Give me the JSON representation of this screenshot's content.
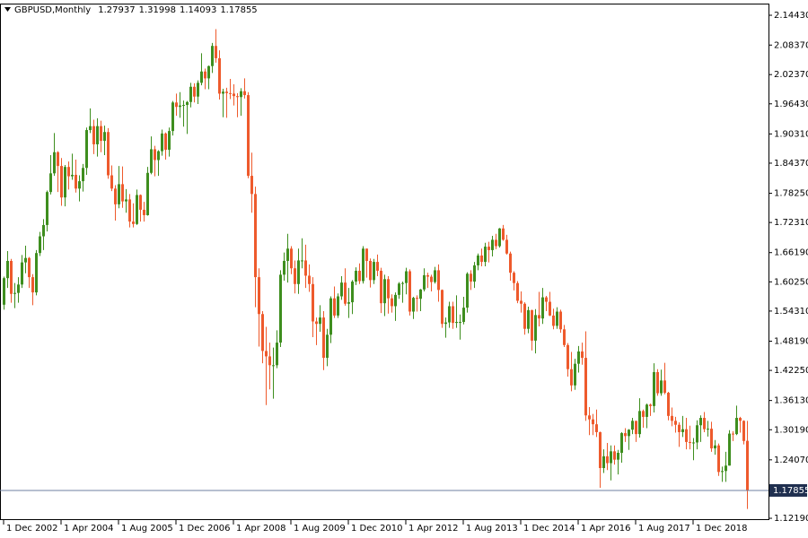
{
  "chart_data": {
    "type": "candlestick",
    "title": "GBPUSD,Monthly",
    "categories": [
      "1 Dec 2002",
      null,
      null,
      null,
      null,
      null,
      null,
      null,
      null,
      null,
      null,
      null,
      null,
      null,
      null,
      null,
      "1 Apr 2004",
      null,
      null,
      null,
      null,
      null,
      null,
      null,
      null,
      null,
      null,
      null,
      null,
      null,
      null,
      null,
      "1 Aug 2005",
      null,
      null,
      null,
      null,
      null,
      null,
      null,
      null,
      null,
      null,
      null,
      null,
      null,
      null,
      null,
      "1 Dec 2006",
      null,
      null,
      null,
      null,
      null,
      null,
      null,
      null,
      null,
      null,
      null,
      null,
      null,
      null,
      null,
      "1 Apr 2008",
      null,
      null,
      null,
      null,
      null,
      null,
      null,
      null,
      null,
      null,
      null,
      null,
      null,
      null,
      null,
      "1 Aug 2009",
      null,
      null,
      null,
      null,
      null,
      null,
      null,
      null,
      null,
      null,
      null,
      null,
      null,
      null,
      null,
      "1 Dec 2010",
      null,
      null,
      null,
      null,
      null,
      null,
      null,
      null,
      null,
      null,
      null,
      null,
      null,
      null,
      null,
      "1 Apr 2012",
      null,
      null,
      null,
      null,
      null,
      null,
      null,
      null,
      null,
      null,
      null,
      null,
      null,
      null,
      null,
      "1 Aug 2013",
      null,
      null,
      null,
      null,
      null,
      null,
      null,
      null,
      null,
      null,
      null,
      null,
      null,
      null,
      null,
      "1 Dec 2014",
      null,
      null,
      null,
      null,
      null,
      null,
      null,
      null,
      null,
      null,
      null,
      null,
      null,
      null,
      null,
      "1 Apr 2016",
      null,
      null,
      null,
      null,
      null,
      null,
      null,
      null,
      null,
      null,
      null,
      null,
      null,
      null,
      null,
      "1 Aug 2017",
      null,
      null,
      null,
      null,
      null,
      null,
      null,
      null,
      null,
      null,
      null,
      null,
      null,
      null,
      null,
      "1 Dec 2018",
      null,
      null,
      null,
      null,
      null,
      null,
      null,
      null,
      null,
      null,
      null,
      null,
      null,
      null,
      null
    ],
    "open": [
      1.556,
      1.61,
      1.645,
      1.578,
      1.58,
      1.597,
      1.642,
      1.651,
      1.612,
      1.581,
      1.661,
      1.695,
      1.718,
      1.785,
      1.823,
      1.866,
      1.838,
      1.774,
      1.836,
      1.817,
      1.82,
      1.792,
      1.807,
      1.834,
      1.911,
      1.919,
      1.882,
      1.919,
      1.889,
      1.907,
      1.819,
      1.792,
      1.76,
      1.801,
      1.766,
      1.77,
      1.725,
      1.72,
      1.779,
      1.749,
      1.738,
      1.824,
      1.872,
      1.85,
      1.868,
      1.904,
      1.871,
      1.909,
      1.967,
      1.958,
      1.961,
      1.962,
      1.968,
      1.999,
      1.979,
      2.007,
      2.03,
      2.016,
      2.041,
      2.082,
      2.057,
      1.985,
      1.989,
      1.986,
      1.985,
      1.98,
      1.978,
      1.99,
      1.982,
      1.818,
      1.781,
      1.612,
      1.537,
      1.462,
      1.451,
      1.433,
      1.433,
      1.479,
      1.617,
      1.645,
      1.67,
      1.63,
      1.598,
      1.646,
      1.646,
      1.615,
      1.598,
      1.522,
      1.517,
      1.53,
      1.448,
      1.495,
      1.569,
      1.534,
      1.573,
      1.601,
      1.558,
      1.561,
      1.603,
      1.625,
      1.604,
      1.67,
      1.645,
      1.606,
      1.643,
      1.625,
      1.559,
      1.608,
      1.569,
      1.553,
      1.576,
      1.599,
      1.6,
      1.624,
      1.542,
      1.57,
      1.568,
      1.587,
      1.616,
      1.613,
      1.602,
      1.626,
      1.586,
      1.517,
      1.52,
      1.553,
      1.519,
      1.521,
      1.521,
      1.55,
      1.619,
      1.603,
      1.636,
      1.656,
      1.643,
      1.674,
      1.667,
      1.688,
      1.675,
      1.711,
      1.688,
      1.66,
      1.621,
      1.6,
      1.564,
      1.558,
      1.507,
      1.545,
      1.483,
      1.535,
      1.528,
      1.571,
      1.562,
      1.534,
      1.513,
      1.542,
      1.506,
      1.474,
      1.425,
      1.392,
      1.436,
      1.461,
      1.448,
      1.331,
      1.323,
      1.313,
      1.297,
      1.224,
      1.248,
      1.234,
      1.258,
      1.241,
      1.255,
      1.295,
      1.289,
      1.302,
      1.32,
      1.293,
      1.34,
      1.328,
      1.353,
      1.35,
      1.419,
      1.376,
      1.402,
      1.377,
      1.33,
      1.32,
      1.312,
      1.297,
      1.303,
      1.277,
      1.275,
      1.276,
      1.311,
      1.326,
      1.303,
      1.304,
      1.264,
      1.27,
      1.216,
      1.218,
      1.229,
      1.294,
      1.293,
      1.326,
      1.32,
      1.27937
    ],
    "high": [
      1.613,
      1.665,
      1.649,
      1.6,
      1.612,
      1.657,
      1.676,
      1.653,
      1.618,
      1.667,
      1.704,
      1.73,
      1.788,
      1.86,
      1.905,
      1.868,
      1.854,
      1.84,
      1.847,
      1.863,
      1.851,
      1.819,
      1.842,
      1.916,
      1.955,
      1.932,
      1.935,
      1.93,
      1.92,
      1.915,
      1.839,
      1.799,
      1.838,
      1.837,
      1.791,
      1.781,
      1.762,
      1.79,
      1.78,
      1.765,
      1.836,
      1.898,
      1.879,
      1.87,
      1.912,
      1.906,
      1.916,
      1.97,
      1.985,
      1.988,
      1.971,
      1.97,
      2.007,
      2.006,
      2.012,
      2.067,
      2.036,
      2.042,
      2.088,
      2.116,
      2.073,
      1.995,
      1.997,
      2.015,
      2.004,
      1.986,
      1.996,
      2.016,
      1.988,
      1.865,
      1.796,
      1.63,
      1.543,
      1.511,
      1.479,
      1.469,
      1.504,
      1.626,
      1.662,
      1.7,
      1.675,
      1.646,
      1.67,
      1.691,
      1.678,
      1.638,
      1.612,
      1.53,
      1.555,
      1.543,
      1.507,
      1.573,
      1.593,
      1.579,
      1.614,
      1.63,
      1.59,
      1.606,
      1.632,
      1.64,
      1.675,
      1.67,
      1.65,
      1.649,
      1.658,
      1.631,
      1.617,
      1.614,
      1.577,
      1.581,
      1.602,
      1.603,
      1.631,
      1.628,
      1.572,
      1.575,
      1.588,
      1.63,
      1.621,
      1.617,
      1.633,
      1.638,
      1.587,
      1.53,
      1.562,
      1.562,
      1.575,
      1.536,
      1.572,
      1.622,
      1.626,
      1.643,
      1.66,
      1.67,
      1.682,
      1.684,
      1.696,
      1.7,
      1.712,
      1.718,
      1.698,
      1.664,
      1.624,
      1.604,
      1.583,
      1.561,
      1.552,
      1.546,
      1.547,
      1.582,
      1.59,
      1.574,
      1.582,
      1.548,
      1.551,
      1.546,
      1.515,
      1.478,
      1.46,
      1.446,
      1.472,
      1.479,
      1.502,
      1.348,
      1.334,
      1.343,
      1.298,
      1.262,
      1.275,
      1.27,
      1.27,
      1.261,
      1.297,
      1.305,
      1.303,
      1.326,
      1.32,
      1.366,
      1.343,
      1.355,
      1.355,
      1.437,
      1.425,
      1.424,
      1.438,
      1.379,
      1.347,
      1.328,
      1.317,
      1.33,
      1.326,
      1.31,
      1.285,
      1.321,
      1.331,
      1.338,
      1.32,
      1.318,
      1.281,
      1.274,
      1.227,
      1.257,
      1.301,
      1.299,
      1.351,
      1.328,
      1.321,
      1.31998
    ],
    "low": [
      1.546,
      1.59,
      1.56,
      1.549,
      1.56,
      1.59,
      1.62,
      1.59,
      1.555,
      1.575,
      1.655,
      1.667,
      1.705,
      1.78,
      1.818,
      1.785,
      1.757,
      1.756,
      1.79,
      1.81,
      1.784,
      1.766,
      1.786,
      1.82,
      1.905,
      1.862,
      1.857,
      1.866,
      1.86,
      1.812,
      1.787,
      1.727,
      1.752,
      1.753,
      1.743,
      1.713,
      1.713,
      1.718,
      1.725,
      1.725,
      1.737,
      1.821,
      1.817,
      1.818,
      1.859,
      1.851,
      1.857,
      1.9,
      1.94,
      1.936,
      1.918,
      1.903,
      1.957,
      1.967,
      1.964,
      2.002,
      1.994,
      1.994,
      2.027,
      2.048,
      1.973,
      1.937,
      1.936,
      1.974,
      1.961,
      1.937,
      1.94,
      1.975,
      1.813,
      1.743,
      1.551,
      1.471,
      1.437,
      1.352,
      1.384,
      1.365,
      1.427,
      1.47,
      1.605,
      1.601,
      1.618,
      1.579,
      1.578,
      1.63,
      1.59,
      1.582,
      1.49,
      1.474,
      1.501,
      1.423,
      1.431,
      1.478,
      1.529,
      1.529,
      1.566,
      1.554,
      1.529,
      1.537,
      1.596,
      1.598,
      1.599,
      1.611,
      1.591,
      1.598,
      1.614,
      1.539,
      1.533,
      1.538,
      1.54,
      1.523,
      1.568,
      1.56,
      1.577,
      1.534,
      1.527,
      1.542,
      1.543,
      1.583,
      1.59,
      1.583,
      1.599,
      1.562,
      1.509,
      1.489,
      1.509,
      1.507,
      1.509,
      1.485,
      1.516,
      1.54,
      1.586,
      1.59,
      1.626,
      1.634,
      1.634,
      1.642,
      1.654,
      1.669,
      1.672,
      1.686,
      1.658,
      1.605,
      1.585,
      1.559,
      1.54,
      1.495,
      1.498,
      1.463,
      1.457,
      1.512,
      1.517,
      1.543,
      1.533,
      1.506,
      1.507,
      1.499,
      1.47,
      1.41,
      1.38,
      1.383,
      1.418,
      1.434,
      1.32,
      1.291,
      1.291,
      1.287,
      1.184,
      1.214,
      1.22,
      1.199,
      1.231,
      1.211,
      1.235,
      1.277,
      1.261,
      1.293,
      1.277,
      1.286,
      1.306,
      1.305,
      1.33,
      1.337,
      1.371,
      1.371,
      1.374,
      1.321,
      1.309,
      1.296,
      1.267,
      1.287,
      1.262,
      1.262,
      1.24,
      1.262,
      1.277,
      1.297,
      1.288,
      1.257,
      1.251,
      1.208,
      1.196,
      1.196,
      1.229,
      1.279,
      1.291,
      1.296,
      1.272,
      1.14093
    ],
    "close": [
      1.61,
      1.645,
      1.578,
      1.58,
      1.597,
      1.642,
      1.651,
      1.612,
      1.581,
      1.661,
      1.695,
      1.718,
      1.785,
      1.823,
      1.866,
      1.838,
      1.774,
      1.836,
      1.817,
      1.82,
      1.792,
      1.807,
      1.834,
      1.911,
      1.919,
      1.882,
      1.919,
      1.889,
      1.907,
      1.819,
      1.792,
      1.76,
      1.801,
      1.766,
      1.77,
      1.725,
      1.72,
      1.779,
      1.749,
      1.738,
      1.824,
      1.872,
      1.85,
      1.868,
      1.904,
      1.871,
      1.909,
      1.967,
      1.958,
      1.961,
      1.962,
      1.968,
      1.999,
      1.979,
      2.007,
      2.03,
      2.016,
      2.041,
      2.082,
      2.057,
      1.985,
      1.989,
      1.986,
      1.985,
      1.98,
      1.978,
      1.99,
      1.982,
      1.818,
      1.781,
      1.612,
      1.537,
      1.462,
      1.451,
      1.433,
      1.433,
      1.479,
      1.617,
      1.645,
      1.67,
      1.63,
      1.598,
      1.646,
      1.646,
      1.615,
      1.598,
      1.522,
      1.517,
      1.53,
      1.448,
      1.495,
      1.569,
      1.534,
      1.573,
      1.601,
      1.558,
      1.561,
      1.603,
      1.625,
      1.604,
      1.67,
      1.645,
      1.606,
      1.643,
      1.625,
      1.559,
      1.608,
      1.569,
      1.553,
      1.576,
      1.599,
      1.6,
      1.624,
      1.542,
      1.57,
      1.568,
      1.587,
      1.616,
      1.613,
      1.602,
      1.626,
      1.586,
      1.517,
      1.52,
      1.553,
      1.519,
      1.521,
      1.521,
      1.55,
      1.619,
      1.603,
      1.636,
      1.656,
      1.643,
      1.674,
      1.667,
      1.688,
      1.675,
      1.711,
      1.688,
      1.66,
      1.621,
      1.6,
      1.564,
      1.558,
      1.507,
      1.545,
      1.483,
      1.535,
      1.528,
      1.571,
      1.562,
      1.534,
      1.513,
      1.542,
      1.506,
      1.474,
      1.425,
      1.392,
      1.436,
      1.461,
      1.448,
      1.331,
      1.323,
      1.313,
      1.297,
      1.224,
      1.248,
      1.234,
      1.258,
      1.241,
      1.255,
      1.295,
      1.289,
      1.302,
      1.32,
      1.293,
      1.34,
      1.328,
      1.353,
      1.35,
      1.419,
      1.376,
      1.402,
      1.377,
      1.33,
      1.32,
      1.312,
      1.297,
      1.303,
      1.277,
      1.275,
      1.276,
      1.311,
      1.326,
      1.303,
      1.304,
      1.264,
      1.27,
      1.216,
      1.218,
      1.229,
      1.294,
      1.293,
      1.326,
      1.32,
      1.279,
      1.17855
    ],
    "up_color": "#3e8e1e",
    "down_color": "#ee5a2c",
    "ylim": [
      1.1183,
      2.1662
    ],
    "yticks": [
      {
        "value": 2.1443,
        "label": "2.14430"
      },
      {
        "value": 2.0837,
        "label": "2.08370"
      },
      {
        "value": 2.0237,
        "label": "2.02370"
      },
      {
        "value": 1.9643,
        "label": "1.96430"
      },
      {
        "value": 1.9031,
        "label": "1.90310"
      },
      {
        "value": 1.8437,
        "label": "1.84370"
      },
      {
        "value": 1.7825,
        "label": "1.78250"
      },
      {
        "value": 1.7231,
        "label": "1.72310"
      },
      {
        "value": 1.6619,
        "label": "1.66190"
      },
      {
        "value": 1.6025,
        "label": "1.60250"
      },
      {
        "value": 1.5431,
        "label": "1.54310"
      },
      {
        "value": 1.4819,
        "label": "1.48190"
      },
      {
        "value": 1.4225,
        "label": "1.42250"
      },
      {
        "value": 1.3613,
        "label": "1.36130"
      },
      {
        "value": 1.3019,
        "label": "1.30190"
      },
      {
        "value": 1.2407,
        "label": "1.24070"
      },
      {
        "value": 1.1219,
        "label": "1.12190"
      }
    ],
    "grid": false
  }
}
